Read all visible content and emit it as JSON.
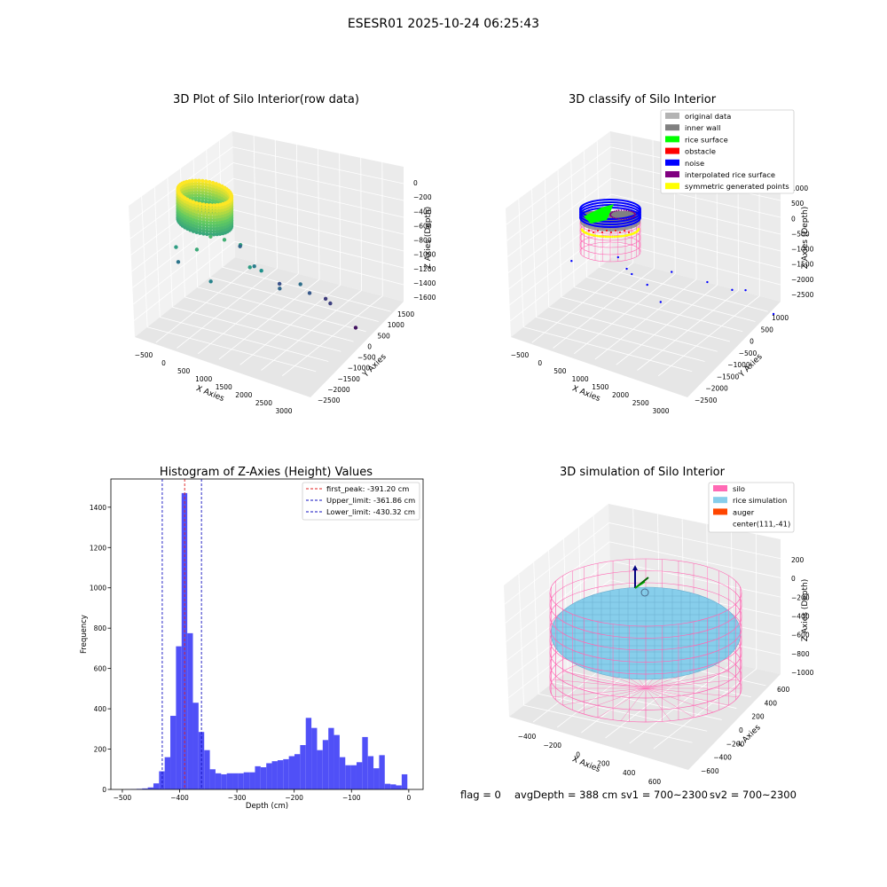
{
  "figure": {
    "suptitle": "ESESR01 2025-10-24 06:25:43",
    "status": {
      "flag": "flag = 0",
      "avg_depth": "avgDepth = 388 cm",
      "sv1": "sv1 = 700~2300",
      "sv2": "sv2 = 700~2300"
    }
  },
  "colors": {
    "pane": "#f2f2f2",
    "pane_dark": "#e6e6e6",
    "grid": "#ffffff",
    "histogram_bar": "#5050f7",
    "first_peak_line": "#e02020",
    "limit_line": "#1010c0",
    "silo_wire": "#ff69b4",
    "rice_fill": "#87ceeb",
    "inner_wall": "#808080",
    "rice_surface": "#00ff00",
    "obstacle": "#ff0000",
    "noise": "#0000ff",
    "interpolated": "#800080",
    "symmetric": "#ffff00",
    "original": "#b3b3b3",
    "auger": "#ff4500"
  },
  "chart_data": [
    {
      "type": "scatter",
      "projection": "3d",
      "title": "3D Plot of Silo Interior(row data)",
      "xlabel": "X Axies",
      "ylabel": "Y Axies",
      "zlabel": "Z Axies (Depth)",
      "xticks": [
        "−500",
        "0",
        "500",
        "1000",
        "1500",
        "2000",
        "2500",
        "3000"
      ],
      "yticks": [
        "1500",
        "1000",
        "500",
        "0",
        "−500",
        "−1000",
        "−1500",
        "−2000",
        "−2500"
      ],
      "zticks": [
        "0",
        "−200",
        "−400",
        "−600",
        "−800",
        "−1000",
        "−1200",
        "−1400",
        "−1600"
      ],
      "xlim": [
        -600,
        3200
      ],
      "ylim": [
        -2700,
        1700
      ],
      "zlim": [
        -1700,
        100
      ],
      "grid": true,
      "colormap": "viridis",
      "dense_cluster": {
        "x": [
          -450,
          600
        ],
        "y": [
          -500,
          500
        ],
        "z": [
          -400,
          0
        ]
      },
      "points": [
        {
          "x": 300,
          "y": 200,
          "z": -500
        },
        {
          "x": 500,
          "y": 0,
          "z": -550
        },
        {
          "x": 700,
          "y": -300,
          "z": -650
        },
        {
          "x": 200,
          "y": 600,
          "z": -600
        },
        {
          "x": -300,
          "y": 500,
          "z": -700
        },
        {
          "x": 600,
          "y": 800,
          "z": -900
        },
        {
          "x": -400,
          "y": 200,
          "z": -1000
        },
        {
          "x": 1200,
          "y": 300,
          "z": -700
        },
        {
          "x": 1300,
          "y": 0,
          "z": -800
        },
        {
          "x": 900,
          "y": -500,
          "z": -950
        },
        {
          "x": 1500,
          "y": -400,
          "z": -1100
        },
        {
          "x": 1800,
          "y": -700,
          "z": -1050
        },
        {
          "x": 1900,
          "y": -900,
          "z": -1200
        },
        {
          "x": 1200,
          "y": -1000,
          "z": -1250
        },
        {
          "x": 2200,
          "y": -1200,
          "z": -1350
        },
        {
          "x": 2000,
          "y": -1400,
          "z": -1380
        },
        {
          "x": 2700,
          "y": -1300,
          "z": -1600
        },
        {
          "x": 100,
          "y": -1500,
          "z": -1100
        }
      ]
    },
    {
      "type": "scatter",
      "projection": "3d",
      "title": "3D classify of Silo Interior",
      "xlabel": "X Axies",
      "ylabel": "Y Axies",
      "zlabel": "Z Axies (Depth)",
      "xticks": [
        "−500",
        "0",
        "500",
        "1000",
        "1500",
        "2000",
        "2500",
        "3000"
      ],
      "yticks": [
        "1000",
        "500",
        "0",
        "−500",
        "−1000",
        "−1500",
        "−2000",
        "−2500"
      ],
      "zticks": [
        "1000",
        "500",
        "0",
        "−500",
        "−1000",
        "−1500",
        "−2000",
        "−2500"
      ],
      "xlim": [
        -600,
        3200
      ],
      "ylim": [
        -2700,
        1200
      ],
      "zlim": [
        -2700,
        1100
      ],
      "grid": true,
      "legend_position": "top-right",
      "legend": [
        {
          "label": "original data",
          "color_key": "original"
        },
        {
          "label": "inner wall",
          "color_key": "inner_wall"
        },
        {
          "label": "rice surface",
          "color_key": "rice_surface"
        },
        {
          "label": "obstacle",
          "color_key": "obstacle"
        },
        {
          "label": "noise",
          "color_key": "noise"
        },
        {
          "label": "interpolated rice surface",
          "color_key": "interpolated"
        },
        {
          "label": "symmetric generated points",
          "color_key": "symmetric"
        }
      ],
      "noise_points": [
        {
          "x": 1500,
          "y": 300,
          "z": -400
        },
        {
          "x": 2000,
          "y": 600,
          "z": -300
        },
        {
          "x": 2400,
          "y": 800,
          "z": -500
        },
        {
          "x": 1000,
          "y": -400,
          "z": -900
        },
        {
          "x": 1800,
          "y": -700,
          "z": -800
        },
        {
          "x": 2400,
          "y": -1000,
          "z": -1000
        },
        {
          "x": 3000,
          "y": -1400,
          "z": -1200
        },
        {
          "x": 2600,
          "y": -1600,
          "z": -1500
        },
        {
          "x": 200,
          "y": -1500,
          "z": -1600
        },
        {
          "x": -300,
          "y": -600,
          "z": -1400
        },
        {
          "x": 3100,
          "y": -2300,
          "z": -2400
        }
      ]
    },
    {
      "type": "bar",
      "title": "Histogram of Z-Axies (Height) Values",
      "xlabel": "Depth (cm)",
      "ylabel": "Frequency",
      "xlim": [
        -520,
        25
      ],
      "ylim": [
        0,
        1540
      ],
      "xticks": [
        -500,
        -400,
        -300,
        -200,
        -100,
        0
      ],
      "xtick_labels": [
        "−500",
        "−400",
        "−300",
        "−200",
        "−100",
        "0"
      ],
      "yticks": [
        0,
        200,
        400,
        600,
        800,
        1000,
        1200,
        1400
      ],
      "grid": false,
      "legend_position": "top-right",
      "bin_start": -495,
      "bin_width": 9.85,
      "values": [
        1,
        2,
        3,
        5,
        10,
        30,
        90,
        160,
        365,
        710,
        1470,
        775,
        430,
        285,
        195,
        100,
        80,
        75,
        80,
        80,
        80,
        85,
        85,
        115,
        110,
        130,
        140,
        145,
        150,
        165,
        175,
        220,
        355,
        305,
        195,
        245,
        305,
        270,
        160,
        120,
        120,
        135,
        260,
        165,
        105,
        170,
        28,
        25,
        20,
        75
      ],
      "vlines": [
        {
          "x": -391.2,
          "label": "first_peak: -391.20 cm",
          "style": "dashed",
          "color_key": "first_peak_line"
        },
        {
          "x": -361.86,
          "label": "Upper_limit: -361.86 cm",
          "style": "dashed",
          "color_key": "limit_line"
        },
        {
          "x": -430.32,
          "label": "Lower_limit: -430.32 cm",
          "style": "dashed",
          "color_key": "limit_line"
        }
      ]
    },
    {
      "type": "scatter",
      "projection": "3d",
      "title": "3D simulation of Silo Interior",
      "xlabel": "X Axies",
      "ylabel": "Y Axies",
      "zlabel": "Z Axies (Depth)",
      "xticks": [
        "−400",
        "−200",
        "0",
        "200",
        "400",
        "600"
      ],
      "yticks": [
        "600",
        "400",
        "200",
        "0",
        "−200",
        "−400",
        "−600"
      ],
      "zticks": [
        "200",
        "0",
        "−200",
        "−400",
        "−600",
        "−800",
        "−1000"
      ],
      "xlim": [
        -550,
        700
      ],
      "ylim": [
        -700,
        650
      ],
      "zlim": [
        -1100,
        300
      ],
      "grid": true,
      "legend_position": "top-right",
      "legend": [
        {
          "label": "silo",
          "color_key": "silo_wire"
        },
        {
          "label": "rice simulation",
          "color_key": "rice_fill"
        },
        {
          "label": "auger",
          "color_key": "auger"
        },
        {
          "label": "center(111,-41)",
          "color_key": ""
        }
      ],
      "silo": {
        "radius": 620,
        "top": 0,
        "bottom": -1000
      },
      "rice_surface_depth": -388,
      "center": {
        "x": 111,
        "y": -41
      }
    }
  ]
}
